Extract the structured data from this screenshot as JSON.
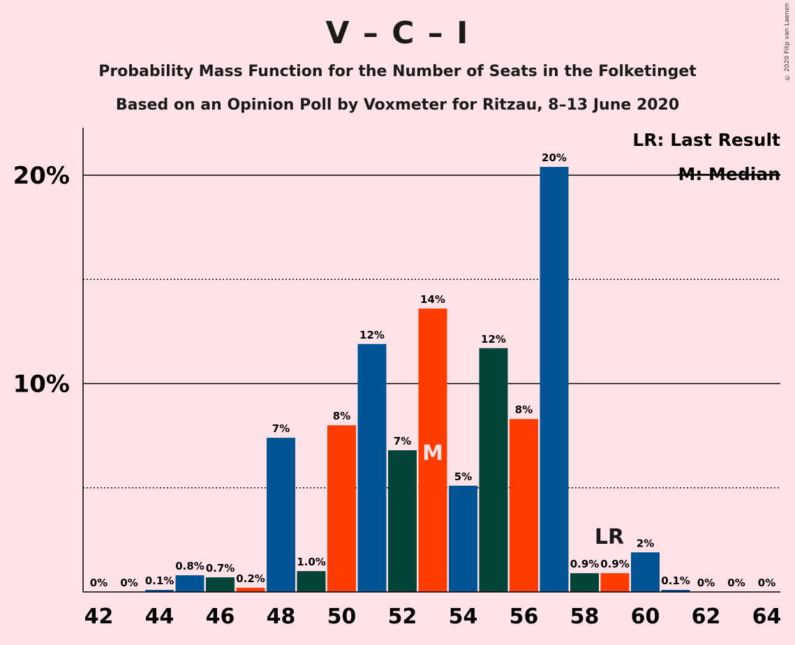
{
  "title": "V – C – I",
  "subtitle1": "Probability Mass Function for the Number of Seats in the Folketinget",
  "subtitle2": "Based on an Opinion Poll by Voxmeter for Ritzau, 8–13 June 2020",
  "copyright": "© 2020 Filip van Laenen",
  "legend": {
    "last_result": "LR: Last Result",
    "median": "M: Median"
  },
  "chart_data": {
    "type": "bar",
    "categories": [
      42,
      43,
      44,
      45,
      46,
      47,
      48,
      49,
      50,
      51,
      52,
      53,
      54,
      55,
      56,
      57,
      58,
      59,
      60,
      61,
      62,
      63,
      64
    ],
    "values": [
      0,
      0,
      0.1,
      0.8,
      0.7,
      0.2,
      7.4,
      1.0,
      8.0,
      11.9,
      6.8,
      13.6,
      5.1,
      11.7,
      8.3,
      20.4,
      0.9,
      0.9,
      1.9,
      0.1,
      0,
      0,
      0
    ],
    "value_labels": [
      "0%",
      "0%",
      "0.1%",
      "0.8%",
      "0.7%",
      "0.2%",
      "7%",
      "1.0%",
      "8%",
      "12%",
      "7%",
      "14%",
      "5%",
      "12%",
      "8%",
      "20%",
      "0.9%",
      "0.9%",
      "2%",
      "0.1%",
      "0%",
      "0%",
      "0%"
    ],
    "bar_colors": [
      "#005494",
      "#005494",
      "#005494",
      "#005494",
      "#024538",
      "#FF3C00",
      "#005494",
      "#024538",
      "#FF3C00",
      "#005494",
      "#024538",
      "#FF3C00",
      "#005494",
      "#024538",
      "#FF3C00",
      "#005494",
      "#024538",
      "#FF3C00",
      "#005494",
      "#005494",
      "#005494",
      "#005494",
      "#005494"
    ],
    "x_tick_labels": [
      "42",
      "44",
      "46",
      "48",
      "50",
      "52",
      "54",
      "56",
      "58",
      "60",
      "62",
      "64"
    ],
    "y_tick_labels": [
      "10%",
      "20%"
    ],
    "ylim": [
      0,
      22.3
    ],
    "gridlines_solid": [
      10,
      20
    ],
    "gridlines_dotted": [
      5,
      15
    ],
    "median_seat": 53,
    "median_marker": "M",
    "last_result_seat": 59,
    "last_result_marker": "LR"
  }
}
